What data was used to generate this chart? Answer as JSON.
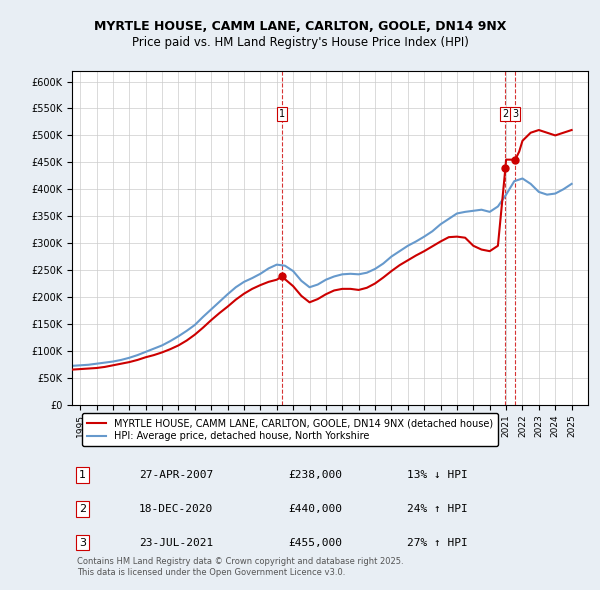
{
  "title": "MYRTLE HOUSE, CAMM LANE, CARLTON, GOOLE, DN14 9NX",
  "subtitle": "Price paid vs. HM Land Registry's House Price Index (HPI)",
  "legend_house": "MYRTLE HOUSE, CAMM LANE, CARLTON, GOOLE, DN14 9NX (detached house)",
  "legend_hpi": "HPI: Average price, detached house, North Yorkshire",
  "footer": "Contains HM Land Registry data © Crown copyright and database right 2025.\nThis data is licensed under the Open Government Licence v3.0.",
  "transactions": [
    {
      "label": "1",
      "date": "27-APR-2007",
      "price": 238000,
      "pct": "13%",
      "dir": "↓",
      "year": 2007.32
    },
    {
      "label": "2",
      "date": "18-DEC-2020",
      "price": 440000,
      "pct": "24%",
      "dir": "↑",
      "year": 2020.96
    },
    {
      "label": "3",
      "date": "23-JUL-2021",
      "price": 455000,
      "pct": "27%",
      "dir": "↑",
      "year": 2021.56
    }
  ],
  "house_color": "#cc0000",
  "hpi_color": "#6699cc",
  "background_color": "#e8eef4",
  "plot_bg": "#ffffff",
  "ylim": [
    0,
    620000
  ],
  "xlim_start": 1994.5,
  "xlim_end": 2026.0,
  "yticks": [
    0,
    50000,
    100000,
    150000,
    200000,
    250000,
    300000,
    350000,
    400000,
    450000,
    500000,
    550000,
    600000
  ],
  "xticks": [
    1995,
    1996,
    1997,
    1998,
    1999,
    2000,
    2001,
    2002,
    2003,
    2004,
    2005,
    2006,
    2007,
    2008,
    2009,
    2010,
    2011,
    2012,
    2013,
    2014,
    2015,
    2016,
    2017,
    2018,
    2019,
    2020,
    2021,
    2022,
    2023,
    2024,
    2025
  ],
  "hpi_x": [
    1994.5,
    1995.0,
    1995.5,
    1996.0,
    1996.5,
    1997.0,
    1997.5,
    1998.0,
    1998.5,
    1999.0,
    1999.5,
    2000.0,
    2000.5,
    2001.0,
    2001.5,
    2002.0,
    2002.5,
    2003.0,
    2003.5,
    2004.0,
    2004.5,
    2005.0,
    2005.5,
    2006.0,
    2006.5,
    2007.0,
    2007.5,
    2008.0,
    2008.5,
    2009.0,
    2009.5,
    2010.0,
    2010.5,
    2011.0,
    2011.5,
    2012.0,
    2012.5,
    2013.0,
    2013.5,
    2014.0,
    2014.5,
    2015.0,
    2015.5,
    2016.0,
    2016.5,
    2017.0,
    2017.5,
    2018.0,
    2018.5,
    2019.0,
    2019.5,
    2020.0,
    2020.5,
    2021.0,
    2021.5,
    2022.0,
    2022.5,
    2023.0,
    2023.5,
    2024.0,
    2024.5,
    2025.0
  ],
  "hpi_y": [
    72000,
    73000,
    74000,
    76000,
    78000,
    80000,
    83000,
    87000,
    92000,
    98000,
    104000,
    110000,
    118000,
    127000,
    137000,
    148000,
    163000,
    177000,
    191000,
    205000,
    218000,
    228000,
    235000,
    243000,
    253000,
    260000,
    258000,
    248000,
    230000,
    218000,
    223000,
    232000,
    238000,
    242000,
    243000,
    242000,
    245000,
    252000,
    262000,
    275000,
    285000,
    295000,
    303000,
    312000,
    322000,
    335000,
    345000,
    355000,
    358000,
    360000,
    362000,
    358000,
    368000,
    390000,
    415000,
    420000,
    410000,
    395000,
    390000,
    392000,
    400000,
    410000
  ],
  "house_x": [
    1994.5,
    1995.0,
    1995.5,
    1996.0,
    1996.5,
    1997.0,
    1997.5,
    1998.0,
    1998.5,
    1999.0,
    1999.5,
    2000.0,
    2000.5,
    2001.0,
    2001.5,
    2002.0,
    2002.5,
    2003.0,
    2003.5,
    2004.0,
    2004.5,
    2005.0,
    2005.5,
    2006.0,
    2006.5,
    2007.0,
    2007.32,
    2007.5,
    2008.0,
    2008.5,
    2009.0,
    2009.5,
    2010.0,
    2010.5,
    2011.0,
    2011.5,
    2012.0,
    2012.5,
    2013.0,
    2013.5,
    2014.0,
    2014.5,
    2015.0,
    2015.5,
    2016.0,
    2016.5,
    2017.0,
    2017.5,
    2018.0,
    2018.5,
    2019.0,
    2019.5,
    2020.0,
    2020.5,
    2020.96,
    2021.0,
    2021.56,
    2021.8,
    2022.0,
    2022.5,
    2023.0,
    2023.5,
    2024.0,
    2024.5,
    2025.0
  ],
  "house_y": [
    65000,
    66000,
    67000,
    68000,
    70000,
    73000,
    76000,
    79000,
    83000,
    88000,
    92000,
    97000,
    103000,
    110000,
    119000,
    130000,
    143000,
    157000,
    170000,
    182000,
    195000,
    206000,
    215000,
    222000,
    228000,
    232000,
    238000,
    233000,
    220000,
    202000,
    190000,
    196000,
    205000,
    212000,
    215000,
    215000,
    213000,
    217000,
    225000,
    236000,
    248000,
    259000,
    268000,
    277000,
    285000,
    294000,
    303000,
    311000,
    312000,
    310000,
    295000,
    288000,
    285000,
    295000,
    440000,
    455000,
    455000,
    470000,
    490000,
    505000,
    510000,
    505000,
    500000,
    505000,
    510000
  ]
}
